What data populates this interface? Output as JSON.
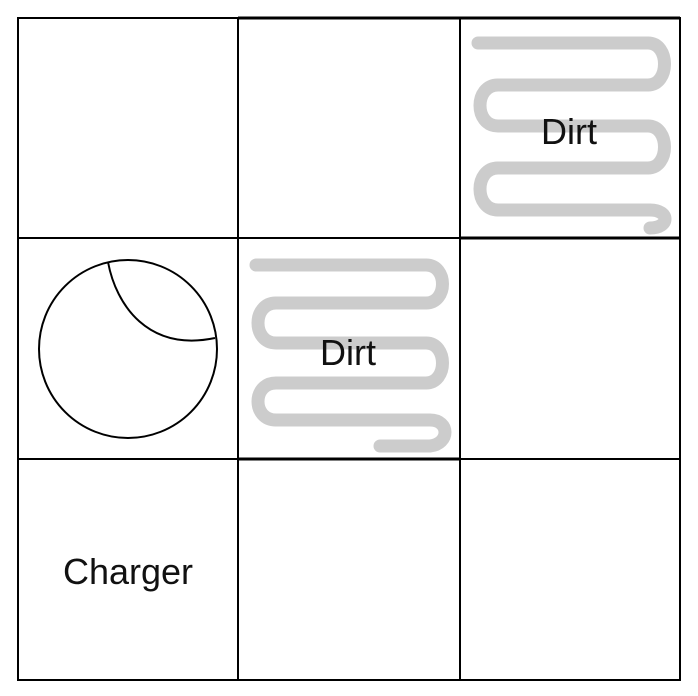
{
  "grid": {
    "rows": 3,
    "cols": 3,
    "cells": [
      {
        "row": 0,
        "col": 0,
        "contents": []
      },
      {
        "row": 0,
        "col": 1,
        "contents": []
      },
      {
        "row": 0,
        "col": 2,
        "contents": [
          "dirt"
        ],
        "label": "Dirt"
      },
      {
        "row": 1,
        "col": 0,
        "contents": [
          "robot"
        ]
      },
      {
        "row": 1,
        "col": 1,
        "contents": [
          "dirt"
        ],
        "label": "Dirt"
      },
      {
        "row": 1,
        "col": 2,
        "contents": []
      },
      {
        "row": 2,
        "col": 0,
        "contents": [
          "charger"
        ],
        "label": "Charger"
      },
      {
        "row": 2,
        "col": 1,
        "contents": []
      },
      {
        "row": 2,
        "col": 2,
        "contents": []
      }
    ]
  },
  "colors": {
    "grid_line": "#000000",
    "dirt_squiggle": "#cccccc",
    "text": "#111111",
    "robot_outline": "#000000"
  }
}
